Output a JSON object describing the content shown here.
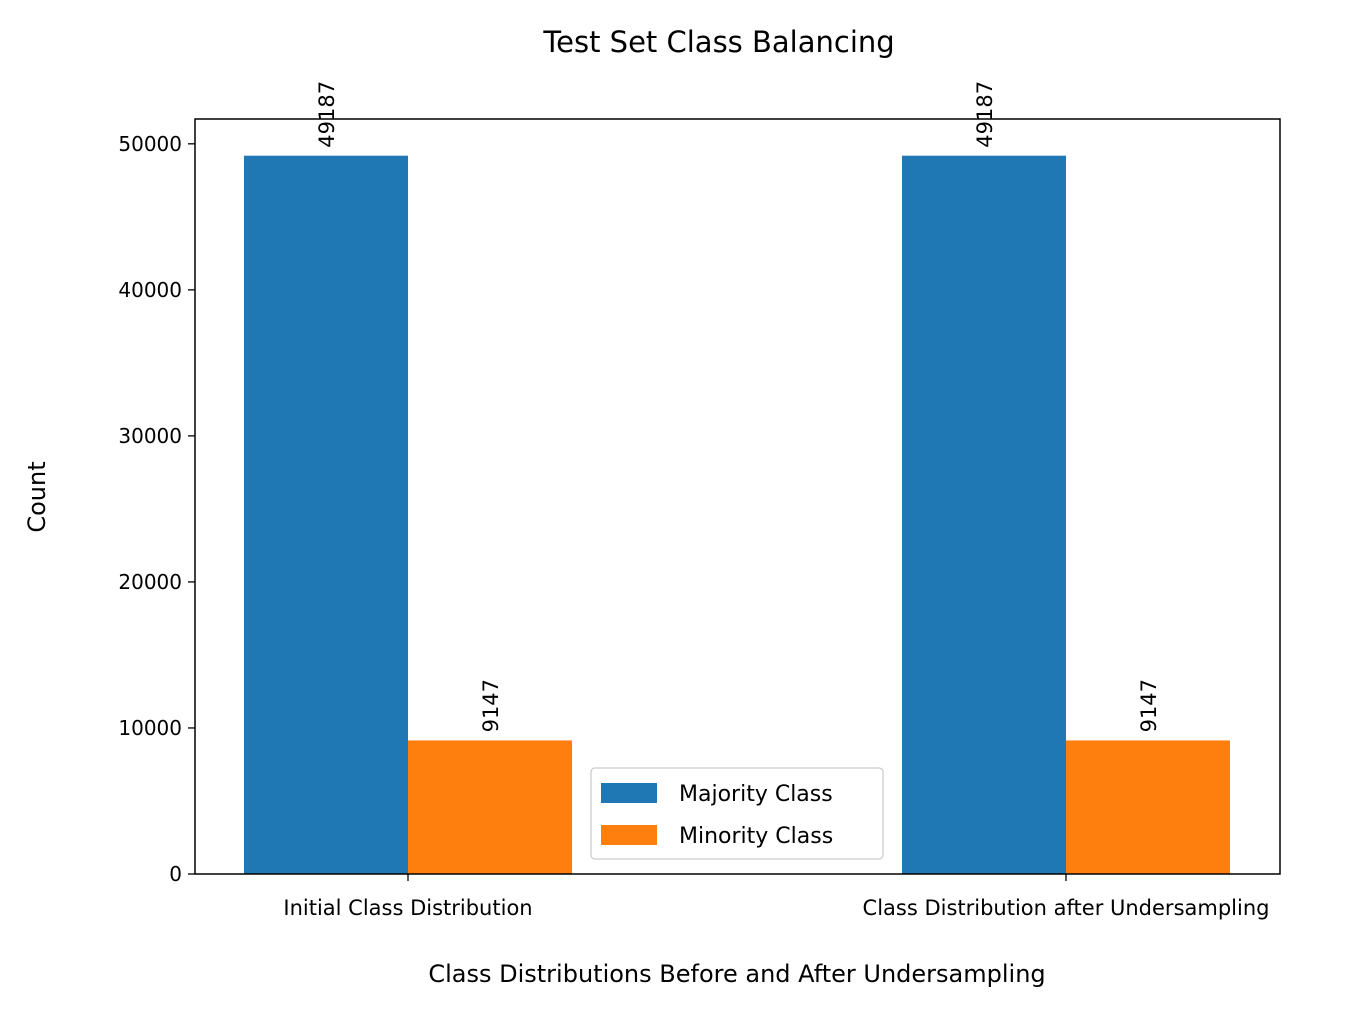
{
  "chart_data": {
    "type": "bar",
    "title": "Test Set Class Balancing",
    "xlabel": "Class Distributions Before and After Undersampling",
    "ylabel": "Count",
    "categories": [
      "Initial Class Distribution",
      "Class Distribution after Undersampling"
    ],
    "series": [
      {
        "name": "Majority Class",
        "values": [
          49187,
          49187
        ],
        "color": "#1f77b4"
      },
      {
        "name": "Minority Class",
        "values": [
          9147,
          9147
        ],
        "color": "#ff7f0e"
      }
    ],
    "data_labels": [
      [
        "49187",
        "49187"
      ],
      [
        "9147",
        "9147"
      ]
    ],
    "ylim": [
      0,
      51700
    ],
    "yticks": [
      0,
      10000,
      20000,
      30000,
      40000,
      50000
    ],
    "ytick_labels": [
      "0",
      "10000",
      "20000",
      "30000",
      "40000",
      "50000"
    ],
    "grid": false,
    "legend_position": "lower center"
  }
}
